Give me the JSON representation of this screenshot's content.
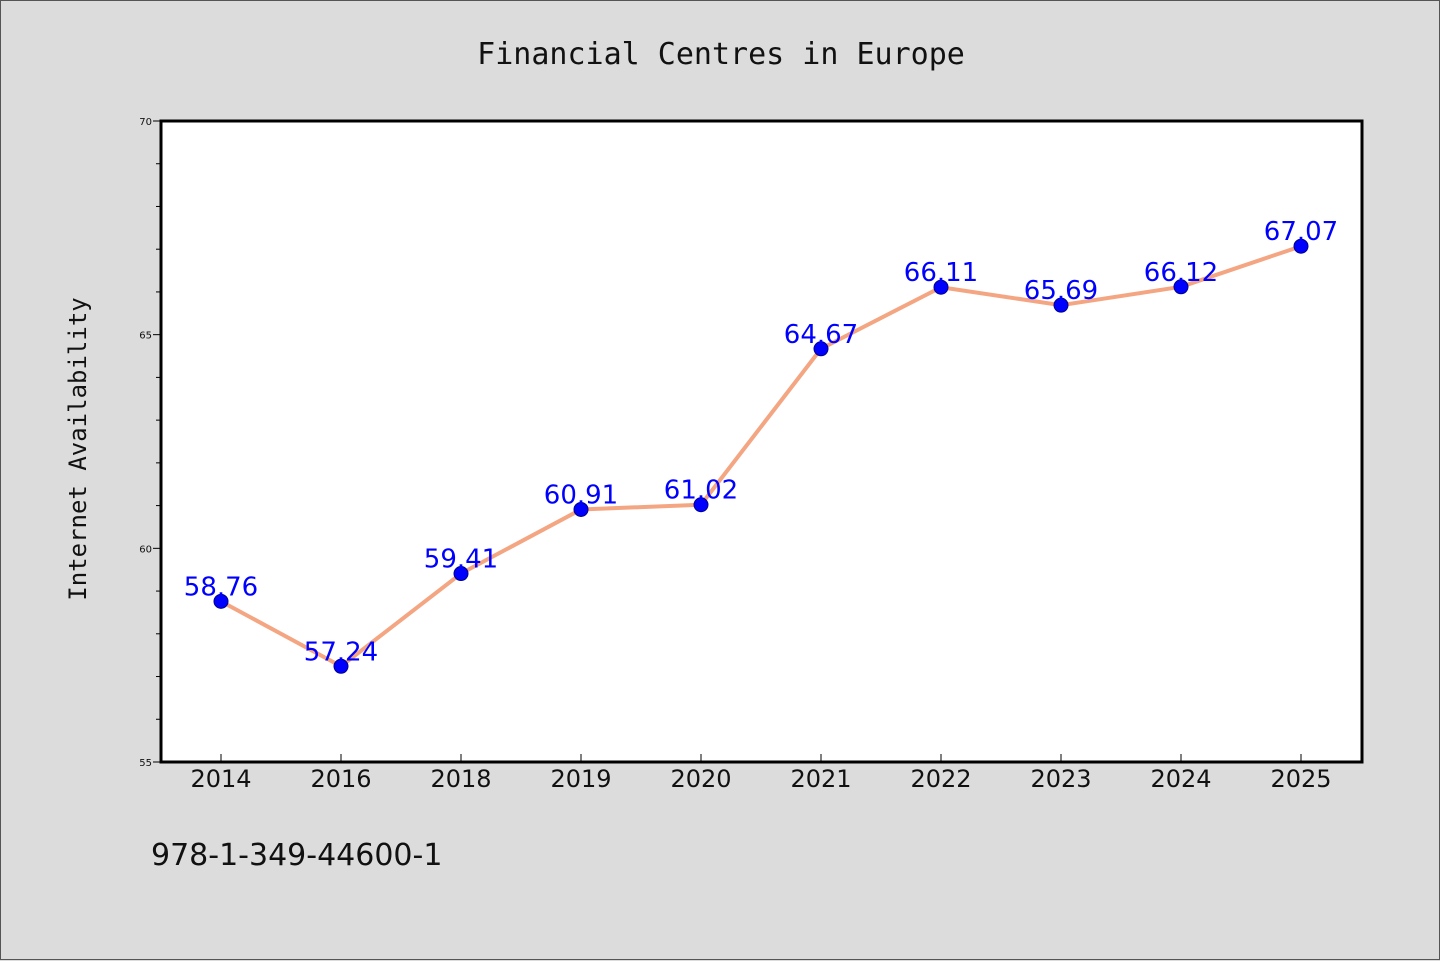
{
  "chart_data": {
    "type": "line",
    "title": "Financial Centres in Europe",
    "xlabel": "",
    "ylabel": "Internet Availability",
    "categories": [
      "2014",
      "2016",
      "2018",
      "2019",
      "2020",
      "2021",
      "2022",
      "2023",
      "2024",
      "2025"
    ],
    "series": [
      {
        "values": [
          58.76,
          57.24,
          59.41,
          60.91,
          61.02,
          64.67,
          66.11,
          65.69,
          66.12,
          67.07
        ],
        "labels": [
          "58.76",
          "57.24",
          "59.41",
          "60.91",
          "61.02",
          "64.67",
          "66.11",
          "65.69",
          "66.12",
          "67.07"
        ],
        "line_color": "#f4a582",
        "marker_color": "#0000ff"
      }
    ],
    "ylim": [
      55,
      70
    ],
    "yticks": [
      "55",
      "60",
      "65",
      "70"
    ],
    "grid": false,
    "legend": "none"
  },
  "footer": {
    "text": "978-1-349-44600-1"
  },
  "colors": {
    "background": "#dcdcdc",
    "plot_background": "#ffffff",
    "line": "#f4a582",
    "marker": "#0000ff",
    "data_label": "#0000ff"
  }
}
